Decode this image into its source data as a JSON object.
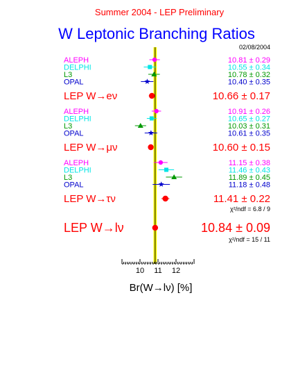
{
  "chart_data": {
    "type": "scatter",
    "supertitle": "Summer 2004 - LEP Preliminary",
    "title": "W Leptonic Branching Ratios",
    "date": "02/08/2004",
    "xlabel": "Br(W→lν)  [%]",
    "xlim": [
      9.0,
      13.0
    ],
    "xticks": [
      "10",
      "11",
      "12"
    ],
    "reference_band": {
      "center": 10.84,
      "half_width": 0.09,
      "color": "#ffff00"
    },
    "colors": {
      "ALEPH": "#ff00ff",
      "DELPHI": "#00e5e5",
      "L3": "#009900",
      "OPAL": "#0000cc",
      "combined": "#ff0000",
      "title": "#0000ff",
      "supertitle": "#ff0000"
    },
    "groups": [
      {
        "combined_label": "LEP W→eν",
        "combined_value": 10.66,
        "combined_error": 0.17,
        "combined_text": "10.66 ±  0.17",
        "chi2": "",
        "experiments": [
          {
            "name": "ALEPH",
            "value": 10.81,
            "error": 0.29,
            "text": "10.81 ±  0.29",
            "marker": "circle"
          },
          {
            "name": "DELPHI",
            "value": 10.55,
            "error": 0.34,
            "text": "10.55 ±  0.34",
            "marker": "square"
          },
          {
            "name": "L3",
            "value": 10.78,
            "error": 0.32,
            "text": "10.78 ±  0.32",
            "marker": "triangle"
          },
          {
            "name": "OPAL",
            "value": 10.4,
            "error": 0.35,
            "text": "10.40 ±  0.35",
            "marker": "star"
          }
        ]
      },
      {
        "combined_label": "LEP W→μν",
        "combined_value": 10.6,
        "combined_error": 0.15,
        "combined_text": "10.60 ±  0.15",
        "chi2": "",
        "experiments": [
          {
            "name": "ALEPH",
            "value": 10.91,
            "error": 0.26,
            "text": "10.91 ±  0.26",
            "marker": "circle"
          },
          {
            "name": "DELPHI",
            "value": 10.65,
            "error": 0.27,
            "text": "10.65 ±  0.27",
            "marker": "square"
          },
          {
            "name": "L3",
            "value": 10.03,
            "error": 0.31,
            "text": "10.03 ±  0.31",
            "marker": "triangle"
          },
          {
            "name": "OPAL",
            "value": 10.61,
            "error": 0.35,
            "text": "10.61 ±  0.35",
            "marker": "star"
          }
        ]
      },
      {
        "combined_label": "LEP W→τν",
        "combined_value": 11.41,
        "combined_error": 0.22,
        "combined_text": "11.41 ±  0.22",
        "chi2": "χ²/ndf = 6.8 / 9",
        "experiments": [
          {
            "name": "ALEPH",
            "value": 11.15,
            "error": 0.38,
            "text": "11.15 ±  0.38",
            "marker": "circle"
          },
          {
            "name": "DELPHI",
            "value": 11.46,
            "error": 0.43,
            "text": "11.46 ±  0.43",
            "marker": "square"
          },
          {
            "name": "L3",
            "value": 11.89,
            "error": 0.45,
            "text": "11.89 ±  0.45",
            "marker": "triangle"
          },
          {
            "name": "OPAL",
            "value": 11.18,
            "error": 0.48,
            "text": "11.18 ±  0.48",
            "marker": "star"
          }
        ]
      }
    ],
    "overall": {
      "label": "LEP W→lν",
      "value": 10.84,
      "error": 0.09,
      "text": "10.84 ±  0.09",
      "chi2": "χ²/ndf = 15 / 11"
    }
  }
}
